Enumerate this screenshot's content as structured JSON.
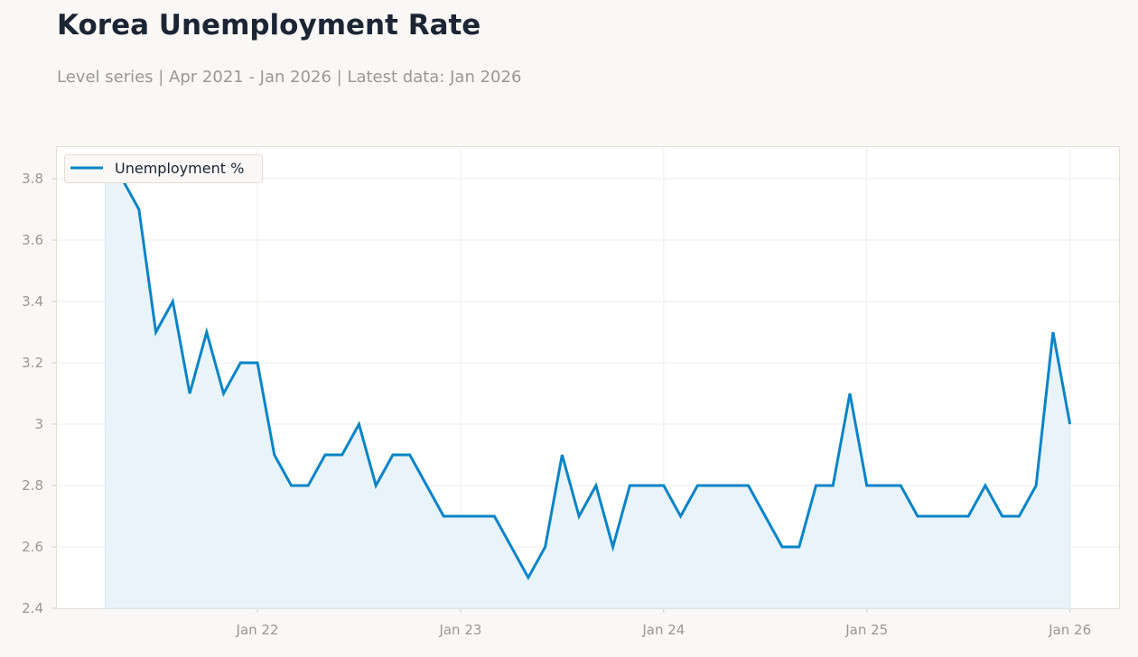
{
  "title": "Korea Unemployment Rate",
  "subtitle": "Level series | Apr 2021 - Jan 2026 | Latest data: Jan 2026",
  "chart_data": {
    "type": "line",
    "title": "Korea Unemployment Rate",
    "xlabel": "",
    "ylabel": "",
    "x_start": "2021-04",
    "x_end": "2026-01",
    "x_tick_labels": [
      "Jan 22",
      "Jan 23",
      "Jan 24",
      "Jan 25",
      "Jan 26"
    ],
    "y_tick_labels": [
      "2.4",
      "2.6",
      "2.8",
      "3",
      "3.2",
      "3.4",
      "3.6",
      "3.8"
    ],
    "ylim": [
      2.4,
      3.9
    ],
    "grid": true,
    "legend_position": "top-left",
    "area_fill": true,
    "colors": {
      "line": "#0984c6",
      "fill": "#e9f3fa"
    },
    "series": [
      {
        "name": "Unemployment %",
        "x": [
          "2021-04",
          "2021-05",
          "2021-06",
          "2021-07",
          "2021-08",
          "2021-09",
          "2021-10",
          "2021-11",
          "2021-12",
          "2022-01",
          "2022-02",
          "2022-03",
          "2022-04",
          "2022-05",
          "2022-06",
          "2022-07",
          "2022-08",
          "2022-09",
          "2022-10",
          "2022-11",
          "2022-12",
          "2023-01",
          "2023-02",
          "2023-03",
          "2023-04",
          "2023-05",
          "2023-06",
          "2023-07",
          "2023-08",
          "2023-09",
          "2023-10",
          "2023-11",
          "2023-12",
          "2024-01",
          "2024-02",
          "2024-03",
          "2024-04",
          "2024-05",
          "2024-06",
          "2024-07",
          "2024-08",
          "2024-09",
          "2024-10",
          "2024-11",
          "2024-12",
          "2025-01",
          "2025-02",
          "2025-03",
          "2025-04",
          "2025-05",
          "2025-06",
          "2025-07",
          "2025-08",
          "2025-09",
          "2025-10",
          "2025-11",
          "2025-12",
          "2026-01"
        ],
        "values": [
          3.8,
          3.8,
          3.7,
          3.3,
          3.4,
          3.1,
          3.3,
          3.1,
          3.2,
          3.2,
          2.9,
          2.8,
          2.8,
          2.9,
          2.9,
          3.0,
          2.8,
          2.9,
          2.9,
          2.8,
          2.7,
          2.7,
          2.7,
          2.7,
          2.6,
          2.5,
          2.6,
          2.9,
          2.7,
          2.8,
          2.6,
          2.8,
          2.8,
          2.8,
          2.7,
          2.8,
          2.8,
          2.8,
          2.8,
          2.7,
          2.6,
          2.6,
          2.8,
          2.8,
          3.1,
          2.8,
          2.8,
          2.8,
          2.7,
          2.7,
          2.7,
          2.7,
          2.8,
          2.7,
          2.7,
          2.8,
          3.3,
          3.0
        ]
      }
    ]
  }
}
